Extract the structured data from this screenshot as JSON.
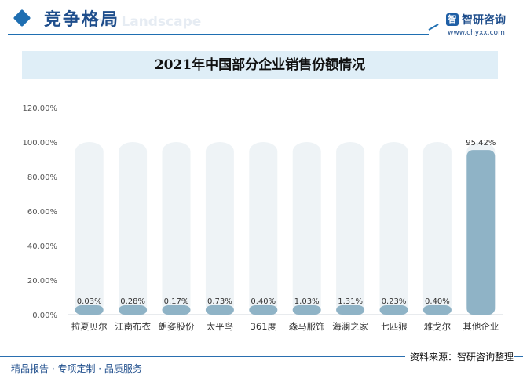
{
  "header": {
    "title": "竞争格局",
    "subtitle": "ive Landscape"
  },
  "brand": {
    "logo_text": "智",
    "name": "智研咨询",
    "url": "www.chyxx.com"
  },
  "footer": {
    "left": "精品报告 · 专项定制 · 品质服务",
    "right": "资料来源：智研咨询整理"
  },
  "chart_data": {
    "type": "bar",
    "title": "2021年中国部分企业销售份额情况",
    "categories": [
      "拉夏贝尔",
      "江南布衣",
      "朗姿股份",
      "太平鸟",
      "361度",
      "森马服饰",
      "海澜之家",
      "七匹狼",
      "雅戈尔",
      "其他企业"
    ],
    "values": [
      0.03,
      0.28,
      0.17,
      0.73,
      0.4,
      1.03,
      1.31,
      0.23,
      0.4,
      95.42
    ],
    "data_labels": [
      "0.03%",
      "0.28%",
      "0.17%",
      "0.73%",
      "0.40%",
      "1.03%",
      "1.31%",
      "0.23%",
      "0.40%",
      "95.42%"
    ],
    "ylim": [
      0,
      120
    ],
    "yticks": [
      "0.00%",
      "20.00%",
      "40.00%",
      "60.00%",
      "80.00%",
      "100.00%",
      "120.00%"
    ],
    "background_max": 100,
    "grid": false,
    "colors": {
      "bar": "#8fb3c6",
      "background_bar": "#eef3f6",
      "axis_text": "#555555",
      "label_text": "#333333"
    }
  }
}
